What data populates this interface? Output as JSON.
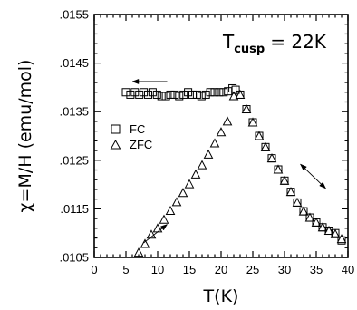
{
  "chart_data": {
    "type": "scatter",
    "title": "",
    "xlabel": "T(K)",
    "ylabel": "χ=M/H (emu/mol)",
    "xlim": [
      0,
      40
    ],
    "ylim": [
      0.0105,
      0.0155
    ],
    "x_ticks": [
      0,
      5,
      10,
      15,
      20,
      25,
      30,
      35,
      40
    ],
    "y_ticks": [
      0.0105,
      0.0115,
      0.0125,
      0.0135,
      0.0145,
      0.0155
    ],
    "y_tick_labels": [
      ".0105",
      ".0115",
      ".0125",
      ".0135",
      ".0145",
      ".0155"
    ],
    "grid": false,
    "legend": "left",
    "annotation": {
      "main": "T",
      "sub": "cusp",
      "value": "=  22K"
    },
    "series": [
      {
        "name": "FC",
        "marker": "square",
        "x": [
          5.0,
          5.7,
          6.4,
          7.1,
          7.8,
          8.5,
          9.2,
          9.9,
          10.6,
          11.3,
          12.0,
          12.7,
          13.4,
          14.1,
          14.8,
          15.5,
          16.2,
          16.9,
          17.6,
          18.3,
          19.0,
          19.7,
          20.4,
          21.1,
          21.8,
          22.3,
          23.0,
          24.0,
          25.0,
          26.0,
          27.0,
          28.0,
          29.0,
          30.0,
          31.0,
          32.0,
          33.0,
          34.0,
          35.0,
          36.0,
          37.0,
          38.0,
          39.0
        ],
        "y": [
          0.0139,
          0.01385,
          0.0139,
          0.01385,
          0.0139,
          0.01385,
          0.0139,
          0.01385,
          0.01382,
          0.01382,
          0.01385,
          0.01385,
          0.01382,
          0.01385,
          0.0139,
          0.01385,
          0.01385,
          0.01382,
          0.01385,
          0.0139,
          0.0139,
          0.0139,
          0.0139,
          0.01392,
          0.01398,
          0.01395,
          0.01385,
          0.01355,
          0.01328,
          0.013,
          0.01277,
          0.01254,
          0.01231,
          0.01208,
          0.01185,
          0.01163,
          0.01145,
          0.01132,
          0.01122,
          0.01112,
          0.01105,
          0.011,
          0.01085
        ]
      },
      {
        "name": "ZFC",
        "marker": "triangle",
        "x": [
          7.0,
          8.0,
          9.0,
          10.0,
          11.0,
          12.0,
          13.0,
          14.0,
          15.0,
          16.0,
          17.0,
          18.0,
          19.0,
          20.0,
          21.0,
          22.0,
          23.0,
          24.0,
          25.0,
          26.0,
          27.0,
          28.0,
          29.0,
          30.0,
          31.0,
          32.0,
          33.0,
          34.0,
          35.0,
          36.0,
          37.0,
          38.0,
          39.0
        ],
        "y": [
          0.0106,
          0.01078,
          0.01097,
          0.0111,
          0.01128,
          0.01146,
          0.01164,
          0.01183,
          0.01201,
          0.01221,
          0.0124,
          0.01262,
          0.01285,
          0.01308,
          0.0133,
          0.01382,
          0.01385,
          0.01355,
          0.01328,
          0.013,
          0.01277,
          0.01254,
          0.01231,
          0.01208,
          0.01185,
          0.01163,
          0.01145,
          0.01132,
          0.01122,
          0.01112,
          0.01105,
          0.01098,
          0.01088
        ]
      }
    ],
    "arrows": [
      {
        "from": [
          11.5,
          0.01412
        ],
        "to": [
          6.0,
          0.01412
        ]
      },
      {
        "from": [
          7.8,
          0.0108
        ],
        "to": [
          11.5,
          0.01118
        ]
      },
      {
        "from": [
          32.5,
          0.01242
        ],
        "to": [
          36.5,
          0.01192
        ],
        "double": true
      }
    ]
  }
}
